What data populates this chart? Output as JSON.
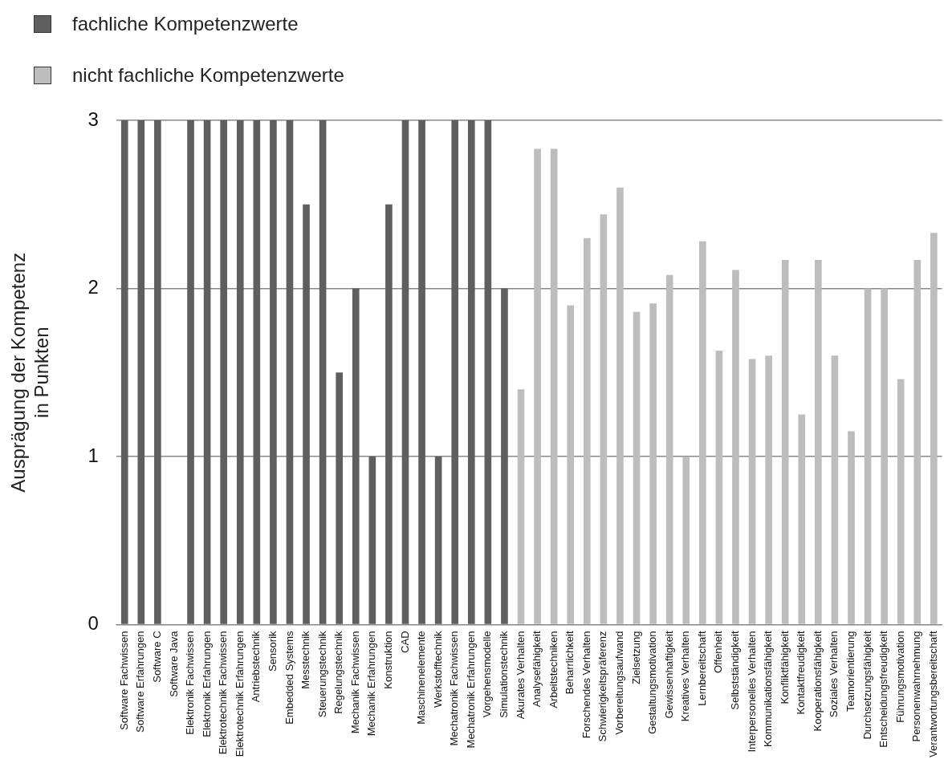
{
  "chart_data": {
    "type": "bar",
    "ylabel": "Ausprägung der Kompetenz\nin Punkten",
    "categories": [
      "Software Fachwissen",
      "Software Erfahrungen",
      "Software C",
      "Software Java",
      "Elektronik Fachwissen",
      "Elektronik Erfahrungen",
      "Elektrotechnik Fachwissen",
      "Elektrotechnik Erfahrungen",
      "Antriebstechnik",
      "Sensorik",
      "Embedded Systems",
      "Messtechnik",
      "Steuerungstechnik",
      "Regelungstechnik",
      "Mechanik Fachwissen",
      "Mechanik Erfahrungen",
      "Konstruktion",
      "CAD",
      "Maschinenelemente",
      "Werkstofftechnik",
      "Mechatronik Fachwissen",
      "Mechatronik Erfahrungen",
      "Vorgehensmodelle",
      "Simulationstechnik",
      "Akurates Verhalten",
      "Analysefähigkeit",
      "Arbeitstechniken",
      "Beharrlichkeit",
      "Forschendes Verhalten",
      "Schwierigkeitspräferenz",
      "Vorbereitungsaufwand",
      "Zielsetzung",
      "Gestaltungsmotivation",
      "Gewissenhaftigkeit",
      "Kreatives Verhalten",
      "Lernbereitschaft",
      "Offenheit",
      "Selbstständigkeit",
      "Interpersonelles Verhalten",
      "Kommunikationsfähigkeit",
      "Konfliktfähigkeit",
      "Kontaktfreudigkeit",
      "Kooperationsfähigkeit",
      "Soziales Verhalten",
      "Teamorientierung",
      "Durchsetzungsfähigkeit",
      "Entscheidungsfreudigkeit",
      "Führungsmotivation",
      "Personenwahrnehmung",
      "Verantwortungsbereitschaft"
    ],
    "series": [
      {
        "name": "fachliche Kompetenzwerte",
        "color": "#5f5f5f",
        "values": [
          3,
          3,
          3,
          0,
          3,
          3,
          3,
          3,
          3,
          3,
          3,
          2.5,
          3,
          1.5,
          2,
          1,
          2.5,
          3,
          3,
          1,
          3,
          3,
          3,
          2,
          null,
          null,
          null,
          null,
          null,
          null,
          null,
          null,
          null,
          null,
          null,
          null,
          null,
          null,
          null,
          null,
          null,
          null,
          null,
          null,
          null,
          null,
          null,
          null,
          null,
          null
        ]
      },
      {
        "name": "nicht fachliche Kompetenzwerte",
        "color": "#bdbdbd",
        "values": [
          null,
          null,
          null,
          null,
          null,
          null,
          null,
          null,
          null,
          null,
          null,
          null,
          null,
          null,
          null,
          null,
          null,
          null,
          null,
          null,
          null,
          null,
          null,
          null,
          1.4,
          2.83,
          2.83,
          1.9,
          2.3,
          2.44,
          2.6,
          1.86,
          1.91,
          2.08,
          1.0,
          2.28,
          1.63,
          2.11,
          1.58,
          1.6,
          2.17,
          1.25,
          2.17,
          1.6,
          1.15,
          2.0,
          2.0,
          1.46,
          2.17,
          2.33
        ]
      }
    ],
    "ylim": [
      0,
      3
    ],
    "yticks": [
      0,
      1,
      2,
      3
    ],
    "grid": "y",
    "legend": "top left"
  }
}
